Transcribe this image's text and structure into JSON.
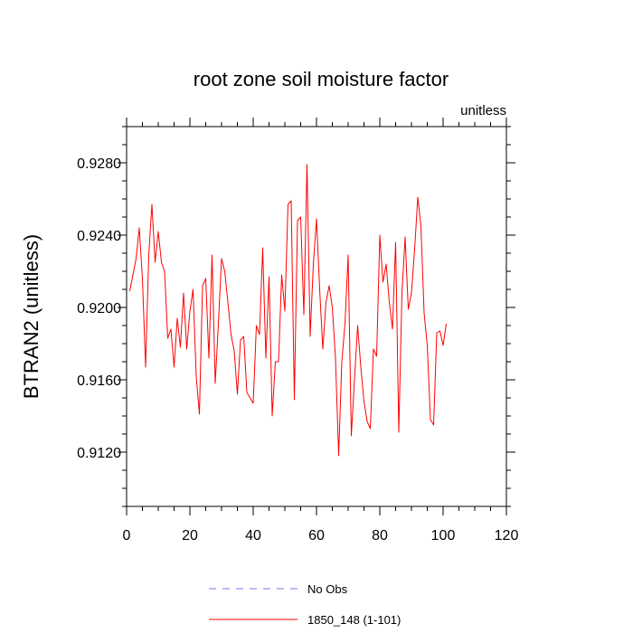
{
  "chart_data": {
    "type": "line",
    "title": "root zone soil moisture factor",
    "units_label": "unitless",
    "ylabel": "BTRAN2  (unitless)",
    "xlabel": "",
    "xlim": [
      0,
      120
    ],
    "ylim": [
      0.909,
      0.93
    ],
    "xticks": [
      0,
      20,
      40,
      60,
      80,
      100,
      120
    ],
    "xtick_labels": [
      "0",
      "20",
      "40",
      "60",
      "80",
      "100",
      "120"
    ],
    "yticks": [
      0.912,
      0.916,
      0.92,
      0.924,
      0.928
    ],
    "ytick_labels": [
      "0.9120",
      "0.9160",
      "0.9200",
      "0.9240",
      "0.9280"
    ],
    "grid": false,
    "legend_position": "bottom",
    "legend": [
      {
        "label": "No Obs",
        "color": "#7777ee",
        "style": "dashed"
      },
      {
        "label": "1850_148 (1-101)",
        "color": "#ff0000",
        "style": "solid"
      }
    ],
    "series": [
      {
        "name": "1850_148 (1-101)",
        "color": "#ff0000",
        "x": [
          1,
          2,
          3,
          4,
          5,
          6,
          7,
          8,
          9,
          10,
          11,
          12,
          13,
          14,
          15,
          16,
          17,
          18,
          19,
          20,
          21,
          22,
          23,
          24,
          25,
          26,
          27,
          28,
          29,
          30,
          31,
          32,
          33,
          34,
          35,
          36,
          37,
          38,
          39,
          40,
          41,
          42,
          43,
          44,
          45,
          46,
          47,
          48,
          49,
          50,
          51,
          52,
          53,
          54,
          55,
          56,
          57,
          58,
          59,
          60,
          61,
          62,
          63,
          64,
          65,
          66,
          67,
          68,
          69,
          70,
          71,
          72,
          73,
          74,
          75,
          76,
          77,
          78,
          79,
          80,
          81,
          82,
          83,
          84,
          85,
          86,
          87,
          88,
          89,
          90,
          91,
          92,
          93,
          94,
          95,
          96,
          97,
          98,
          99,
          100,
          101
        ],
        "values": [
          0.9209,
          0.9218,
          0.9227,
          0.9244,
          0.9216,
          0.9167,
          0.9229,
          0.9257,
          0.9225,
          0.9242,
          0.9225,
          0.922,
          0.9183,
          0.9188,
          0.9167,
          0.9194,
          0.9178,
          0.9208,
          0.9177,
          0.9198,
          0.921,
          0.9162,
          0.9141,
          0.9212,
          0.9216,
          0.9172,
          0.9229,
          0.9158,
          0.9191,
          0.9227,
          0.922,
          0.9203,
          0.9185,
          0.9176,
          0.9152,
          0.9182,
          0.9184,
          0.9153,
          0.915,
          0.9147,
          0.919,
          0.9185,
          0.9233,
          0.9172,
          0.9217,
          0.914,
          0.917,
          0.917,
          0.9218,
          0.9198,
          0.9257,
          0.9259,
          0.9149,
          0.9248,
          0.925,
          0.9196,
          0.9279,
          0.9184,
          0.9224,
          0.9249,
          0.921,
          0.9177,
          0.9203,
          0.9212,
          0.92,
          0.9172,
          0.9118,
          0.917,
          0.9191,
          0.9229,
          0.9129,
          0.916,
          0.919,
          0.9167,
          0.9148,
          0.9137,
          0.9133,
          0.9177,
          0.9173,
          0.924,
          0.9214,
          0.9224,
          0.9203,
          0.9188,
          0.9236,
          0.9131,
          0.9208,
          0.9239,
          0.9199,
          0.9208,
          0.9232,
          0.9261,
          0.9245,
          0.9197,
          0.9179,
          0.9138,
          0.9135,
          0.9186,
          0.9187,
          0.9179,
          0.9191
        ]
      }
    ]
  }
}
